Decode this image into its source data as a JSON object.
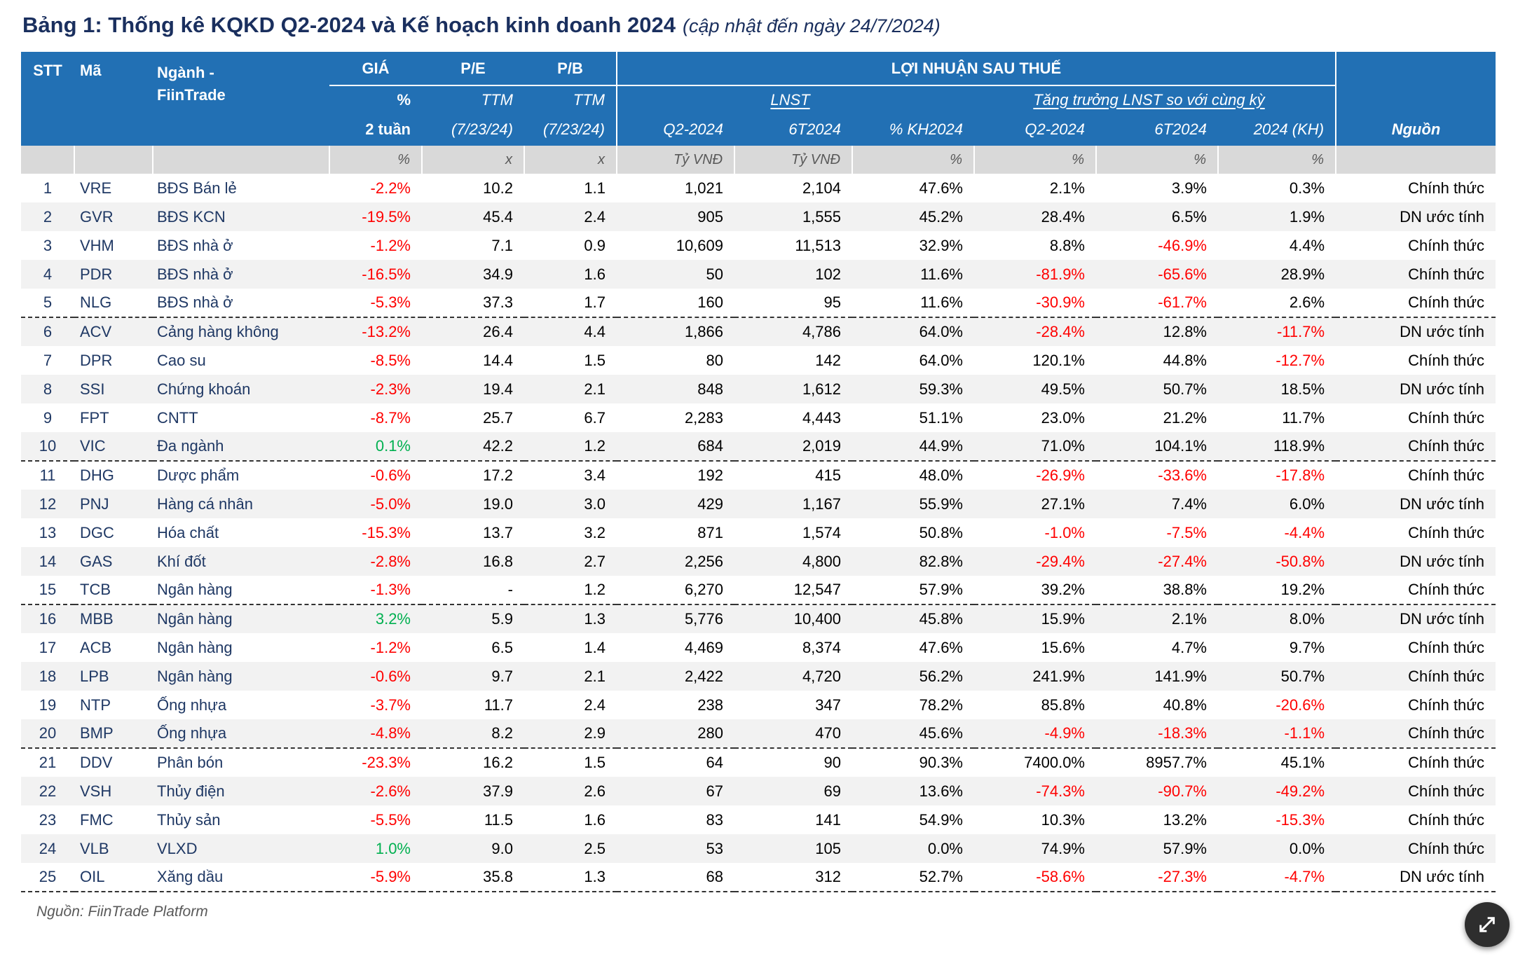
{
  "title": {
    "main": "Bảng 1: Thống kê KQKD Q2-2024 và Kế hoạch kinh doanh 2024",
    "suffix": "(cập nhật đến ngày 24/7/2024)"
  },
  "header": {
    "stt": "STT",
    "ma": "Mã",
    "nganh_line1": "Ngành -",
    "nganh_line2": "FiinTrade",
    "gia": "GIÁ",
    "pe": "P/E",
    "pb": "P/B",
    "lnst_group": "LỢI NHUẬN SAU THUẾ",
    "gia_sub1": "%",
    "gia_sub2": "2 tuần",
    "ttm": "TTM",
    "ttm_date": "(7/23/24)",
    "lnst": "LNST",
    "growth": "Tăng trưởng LNST so với cùng kỳ",
    "q2": "Q2-2024",
    "t6": "6T2024",
    "kh": "% KH2024",
    "gq2": "Q2-2024",
    "gt6": "6T2024",
    "g2024": "2024 (KH)",
    "nguon": "Nguồn"
  },
  "units": {
    "gia": "%",
    "pe": "x",
    "pb": "x",
    "q2": "Tỷ VNĐ",
    "t6": "Tỷ VNĐ",
    "kh": "%",
    "gq2": "%",
    "gt6": "%",
    "g2024": "%"
  },
  "rows": [
    {
      "stt": "1",
      "ma": "VRE",
      "nganh": "BĐS Bán lẻ",
      "gia": "-2.2%",
      "pe": "10.2",
      "pb": "1.1",
      "q2": "1,021",
      "t6": "2,104",
      "kh": "47.6%",
      "gq2": "2.1%",
      "gt6": "3.9%",
      "g2024": "0.3%",
      "nguon": "Chính thức"
    },
    {
      "stt": "2",
      "ma": "GVR",
      "nganh": "BĐS KCN",
      "gia": "-19.5%",
      "pe": "45.4",
      "pb": "2.4",
      "q2": "905",
      "t6": "1,555",
      "kh": "45.2%",
      "gq2": "28.4%",
      "gt6": "6.5%",
      "g2024": "1.9%",
      "nguon": "DN ước tính"
    },
    {
      "stt": "3",
      "ma": "VHM",
      "nganh": "BĐS nhà ở",
      "gia": "-1.2%",
      "pe": "7.1",
      "pb": "0.9",
      "q2": "10,609",
      "t6": "11,513",
      "kh": "32.9%",
      "gq2": "8.8%",
      "gt6": "-46.9%",
      "g2024": "4.4%",
      "nguon": "Chính thức"
    },
    {
      "stt": "4",
      "ma": "PDR",
      "nganh": "BĐS nhà ở",
      "gia": "-16.5%",
      "pe": "34.9",
      "pb": "1.6",
      "q2": "50",
      "t6": "102",
      "kh": "11.6%",
      "gq2": "-81.9%",
      "gt6": "-65.6%",
      "g2024": "28.9%",
      "nguon": "Chính thức"
    },
    {
      "stt": "5",
      "ma": "NLG",
      "nganh": "BĐS nhà ở",
      "gia": "-5.3%",
      "pe": "37.3",
      "pb": "1.7",
      "q2": "160",
      "t6": "95",
      "kh": "11.6%",
      "gq2": "-30.9%",
      "gt6": "-61.7%",
      "g2024": "2.6%",
      "nguon": "Chính thức"
    },
    {
      "stt": "6",
      "ma": "ACV",
      "nganh": "Cảng hàng không",
      "gia": "-13.2%",
      "pe": "26.4",
      "pb": "4.4",
      "q2": "1,866",
      "t6": "4,786",
      "kh": "64.0%",
      "gq2": "-28.4%",
      "gt6": "12.8%",
      "g2024": "-11.7%",
      "nguon": "DN ước tính"
    },
    {
      "stt": "7",
      "ma": "DPR",
      "nganh": "Cao su",
      "gia": "-8.5%",
      "pe": "14.4",
      "pb": "1.5",
      "q2": "80",
      "t6": "142",
      "kh": "64.0%",
      "gq2": "120.1%",
      "gt6": "44.8%",
      "g2024": "-12.7%",
      "nguon": "Chính thức"
    },
    {
      "stt": "8",
      "ma": "SSI",
      "nganh": "Chứng khoán",
      "gia": "-2.3%",
      "pe": "19.4",
      "pb": "2.1",
      "q2": "848",
      "t6": "1,612",
      "kh": "59.3%",
      "gq2": "49.5%",
      "gt6": "50.7%",
      "g2024": "18.5%",
      "nguon": "DN ước tính"
    },
    {
      "stt": "9",
      "ma": "FPT",
      "nganh": "CNTT",
      "gia": "-8.7%",
      "pe": "25.7",
      "pb": "6.7",
      "q2": "2,283",
      "t6": "4,443",
      "kh": "51.1%",
      "gq2": "23.0%",
      "gt6": "21.2%",
      "g2024": "11.7%",
      "nguon": "Chính thức"
    },
    {
      "stt": "10",
      "ma": "VIC",
      "nganh": "Đa ngành",
      "gia": "0.1%",
      "pe": "42.2",
      "pb": "1.2",
      "q2": "684",
      "t6": "2,019",
      "kh": "44.9%",
      "gq2": "71.0%",
      "gt6": "104.1%",
      "g2024": "118.9%",
      "nguon": "Chính thức"
    },
    {
      "stt": "11",
      "ma": "DHG",
      "nganh": "Dược phẩm",
      "gia": "-0.6%",
      "pe": "17.2",
      "pb": "3.4",
      "q2": "192",
      "t6": "415",
      "kh": "48.0%",
      "gq2": "-26.9%",
      "gt6": "-33.6%",
      "g2024": "-17.8%",
      "nguon": "Chính thức"
    },
    {
      "stt": "12",
      "ma": "PNJ",
      "nganh": "Hàng cá nhân",
      "gia": "-5.0%",
      "pe": "19.0",
      "pb": "3.0",
      "q2": "429",
      "t6": "1,167",
      "kh": "55.9%",
      "gq2": "27.1%",
      "gt6": "7.4%",
      "g2024": "6.0%",
      "nguon": "DN ước tính"
    },
    {
      "stt": "13",
      "ma": "DGC",
      "nganh": "Hóa chất",
      "gia": "-15.3%",
      "pe": "13.7",
      "pb": "3.2",
      "q2": "871",
      "t6": "1,574",
      "kh": "50.8%",
      "gq2": "-1.0%",
      "gt6": "-7.5%",
      "g2024": "-4.4%",
      "nguon": "Chính thức"
    },
    {
      "stt": "14",
      "ma": "GAS",
      "nganh": "Khí đốt",
      "gia": "-2.8%",
      "pe": "16.8",
      "pb": "2.7",
      "q2": "2,256",
      "t6": "4,800",
      "kh": "82.8%",
      "gq2": "-29.4%",
      "gt6": "-27.4%",
      "g2024": "-50.8%",
      "nguon": "DN ước tính"
    },
    {
      "stt": "15",
      "ma": "TCB",
      "nganh": "Ngân hàng",
      "gia": "-1.3%",
      "pe": "-",
      "pb": "1.2",
      "q2": "6,270",
      "t6": "12,547",
      "kh": "57.9%",
      "gq2": "39.2%",
      "gt6": "38.8%",
      "g2024": "19.2%",
      "nguon": "Chính thức"
    },
    {
      "stt": "16",
      "ma": "MBB",
      "nganh": "Ngân hàng",
      "gia": "3.2%",
      "pe": "5.9",
      "pb": "1.3",
      "q2": "5,776",
      "t6": "10,400",
      "kh": "45.8%",
      "gq2": "15.9%",
      "gt6": "2.1%",
      "g2024": "8.0%",
      "nguon": "DN ước tính"
    },
    {
      "stt": "17",
      "ma": "ACB",
      "nganh": "Ngân hàng",
      "gia": "-1.2%",
      "pe": "6.5",
      "pb": "1.4",
      "q2": "4,469",
      "t6": "8,374",
      "kh": "47.6%",
      "gq2": "15.6%",
      "gt6": "4.7%",
      "g2024": "9.7%",
      "nguon": "Chính thức"
    },
    {
      "stt": "18",
      "ma": "LPB",
      "nganh": "Ngân hàng",
      "gia": "-0.6%",
      "pe": "9.7",
      "pb": "2.1",
      "q2": "2,422",
      "t6": "4,720",
      "kh": "56.2%",
      "gq2": "241.9%",
      "gt6": "141.9%",
      "g2024": "50.7%",
      "nguon": "Chính thức"
    },
    {
      "stt": "19",
      "ma": "NTP",
      "nganh": "Ống nhựa",
      "gia": "-3.7%",
      "pe": "11.7",
      "pb": "2.4",
      "q2": "238",
      "t6": "347",
      "kh": "78.2%",
      "gq2": "85.8%",
      "gt6": "40.8%",
      "g2024": "-20.6%",
      "nguon": "Chính thức"
    },
    {
      "stt": "20",
      "ma": "BMP",
      "nganh": "Ống nhựa",
      "gia": "-4.8%",
      "pe": "8.2",
      "pb": "2.9",
      "q2": "280",
      "t6": "470",
      "kh": "45.6%",
      "gq2": "-4.9%",
      "gt6": "-18.3%",
      "g2024": "-1.1%",
      "nguon": "Chính thức"
    },
    {
      "stt": "21",
      "ma": "DDV",
      "nganh": "Phân bón",
      "gia": "-23.3%",
      "pe": "16.2",
      "pb": "1.5",
      "q2": "64",
      "t6": "90",
      "kh": "90.3%",
      "gq2": "7400.0%",
      "gt6": "8957.7%",
      "g2024": "45.1%",
      "nguon": "Chính thức"
    },
    {
      "stt": "22",
      "ma": "VSH",
      "nganh": "Thủy điện",
      "gia": "-2.6%",
      "pe": "37.9",
      "pb": "2.6",
      "q2": "67",
      "t6": "69",
      "kh": "13.6%",
      "gq2": "-74.3%",
      "gt6": "-90.7%",
      "g2024": "-49.2%",
      "nguon": "Chính thức"
    },
    {
      "stt": "23",
      "ma": "FMC",
      "nganh": "Thủy sản",
      "gia": "-5.5%",
      "pe": "11.5",
      "pb": "1.6",
      "q2": "83",
      "t6": "141",
      "kh": "54.9%",
      "gq2": "10.3%",
      "gt6": "13.2%",
      "g2024": "-15.3%",
      "nguon": "Chính thức"
    },
    {
      "stt": "24",
      "ma": "VLB",
      "nganh": "VLXD",
      "gia": "1.0%",
      "pe": "9.0",
      "pb": "2.5",
      "q2": "53",
      "t6": "105",
      "kh": "0.0%",
      "gq2": "74.9%",
      "gt6": "57.9%",
      "g2024": "0.0%",
      "nguon": "Chính thức"
    },
    {
      "stt": "25",
      "ma": "OIL",
      "nganh": "Xăng dầu",
      "gia": "-5.9%",
      "pe": "35.8",
      "pb": "1.3",
      "q2": "68",
      "t6": "312",
      "kh": "52.7%",
      "gq2": "-58.6%",
      "gt6": "-27.3%",
      "g2024": "-4.7%",
      "nguon": "DN ước tính"
    }
  ],
  "footer": {
    "source": "Nguồn: FiinTrade Platform"
  },
  "fab": {
    "icon": "expand-icon"
  },
  "colors": {
    "header_bg": "#2270B4",
    "header_text": "#FFFFFF",
    "units_bg": "#D9D9D9",
    "units_text": "#595959",
    "navy_text": "#1F3864",
    "negative": "#FF0000",
    "positive": "#00B050",
    "alt_row": "#F2F2F2",
    "title": "#1A2F5E",
    "fab_bg": "#2E2E2E"
  }
}
